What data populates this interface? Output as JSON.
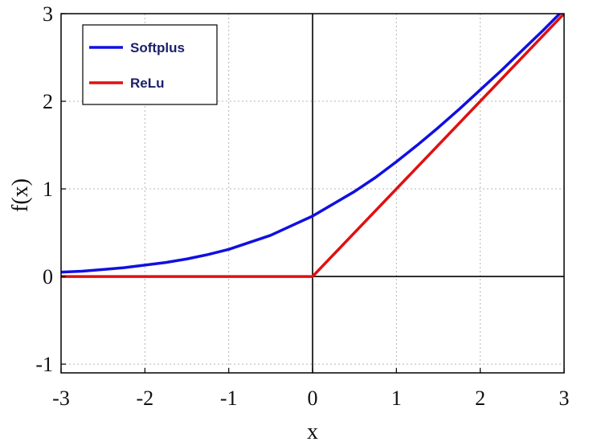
{
  "chart_data": {
    "type": "line",
    "title": "",
    "xlabel": "x",
    "ylabel": "f(x)",
    "xlim": [
      -3,
      3
    ],
    "ylim": [
      -1.1,
      3
    ],
    "x_ticks": [
      "-3",
      "-2",
      "-1",
      "0",
      "1",
      "2",
      "3"
    ],
    "y_ticks": [
      "-1",
      "0",
      "1",
      "2",
      "3"
    ],
    "x_tick_values": [
      -3,
      -2,
      -1,
      0,
      1,
      2,
      3
    ],
    "y_tick_values": [
      -1,
      0,
      1,
      2,
      3
    ],
    "grid": true,
    "legend_position": "top-left",
    "series": [
      {
        "name": "Softplus",
        "color": "#1010e0",
        "x": [
          -3.0,
          -2.75,
          -2.5,
          -2.25,
          -2.0,
          -1.75,
          -1.5,
          -1.25,
          -1.0,
          -0.75,
          -0.5,
          -0.25,
          0.0,
          0.25,
          0.5,
          0.75,
          1.0,
          1.25,
          1.5,
          1.75,
          2.0,
          2.25,
          2.5,
          2.75,
          3.0
        ],
        "y": [
          0.05,
          0.06,
          0.08,
          0.1,
          0.13,
          0.16,
          0.2,
          0.25,
          0.31,
          0.39,
          0.47,
          0.58,
          0.69,
          0.83,
          0.97,
          1.13,
          1.31,
          1.5,
          1.7,
          1.91,
          2.13,
          2.35,
          2.58,
          2.81,
          3.05
        ]
      },
      {
        "name": "ReLu",
        "color": "#e01010",
        "x": [
          -3.0,
          0.0,
          3.0
        ],
        "y": [
          0.0,
          0.0,
          3.0
        ]
      }
    ]
  }
}
